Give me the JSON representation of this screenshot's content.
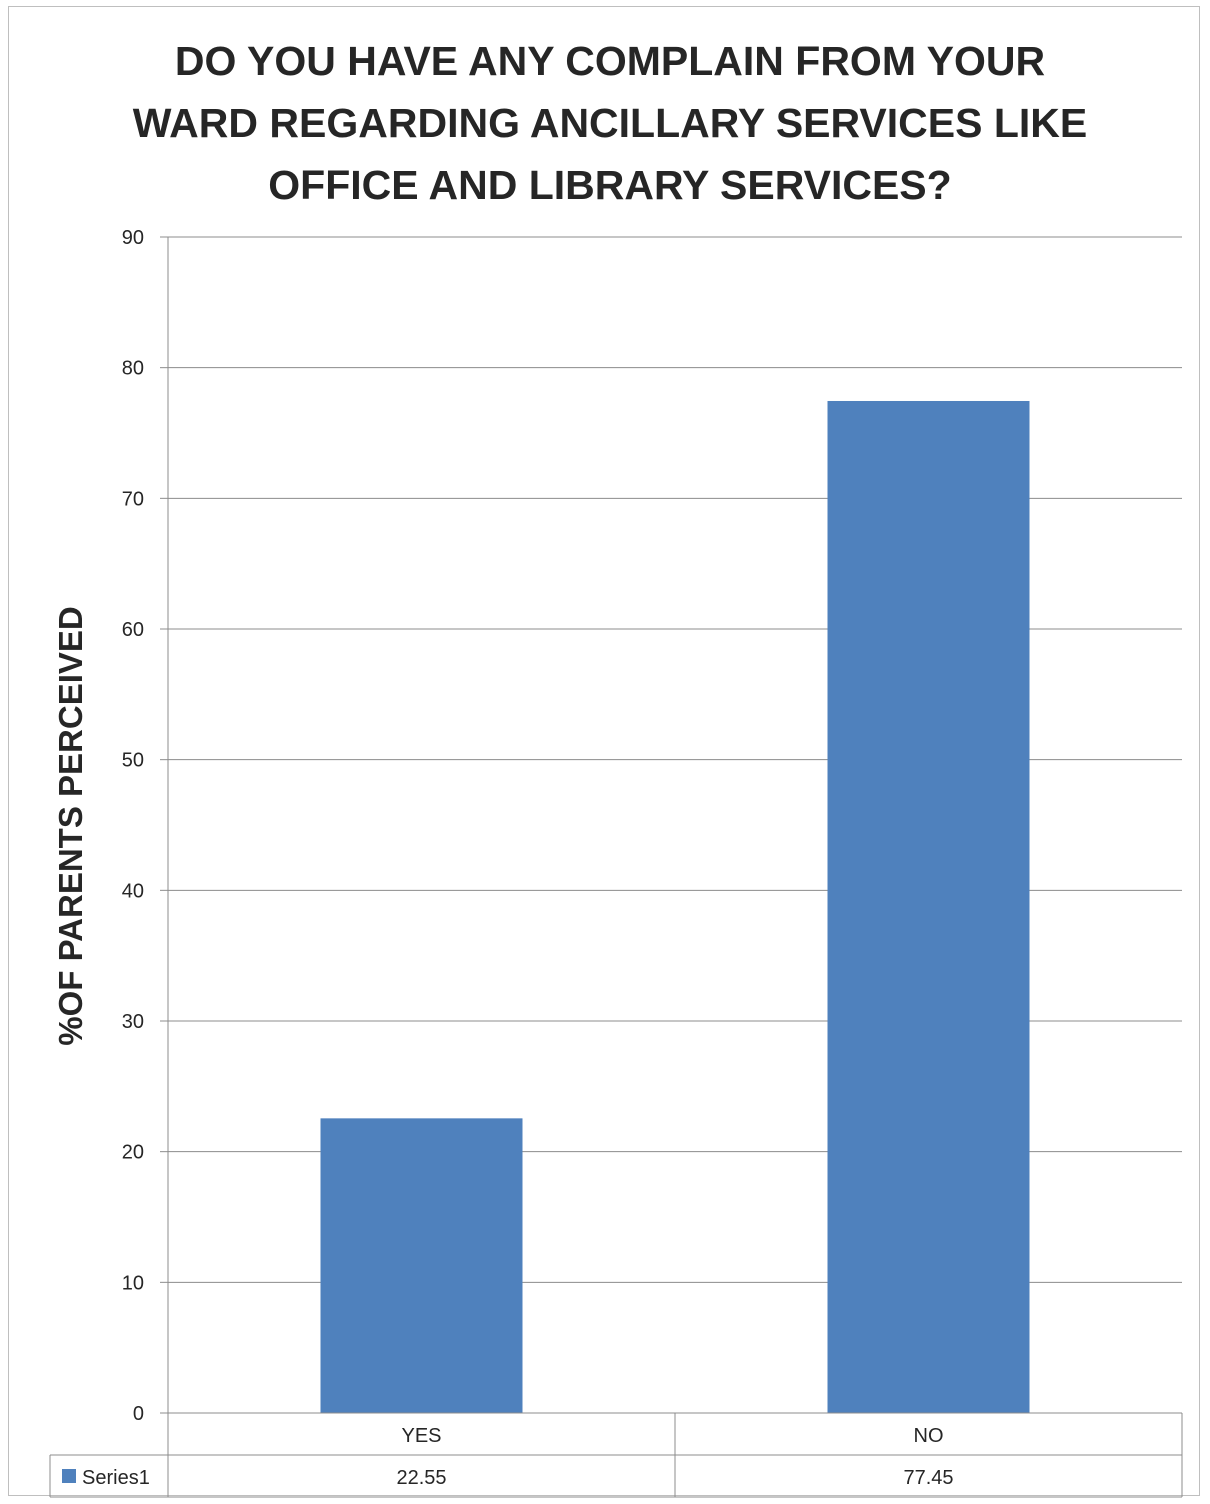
{
  "chart_data": {
    "type": "bar",
    "title": "DO YOU HAVE ANY COMPLAIN FROM YOUR\nWARD REGARDING ANCILLARY SERVICES LIKE\nOFFICE AND LIBRARY SERVICES?",
    "xlabel": "",
    "ylabel": "%OF PARENTS PERCEIVED",
    "categories": [
      "YES",
      "NO"
    ],
    "series": [
      {
        "name": "Series1",
        "values": [
          22.55,
          77.45
        ],
        "value_labels": [
          "22.55",
          "77.45"
        ],
        "color": "#4F81BD"
      }
    ],
    "ylim": [
      0,
      90
    ],
    "yticks": [
      "0",
      "10",
      "20",
      "30",
      "40",
      "50",
      "60",
      "70",
      "80",
      "90"
    ],
    "grid": true,
    "legend": "data-table"
  }
}
